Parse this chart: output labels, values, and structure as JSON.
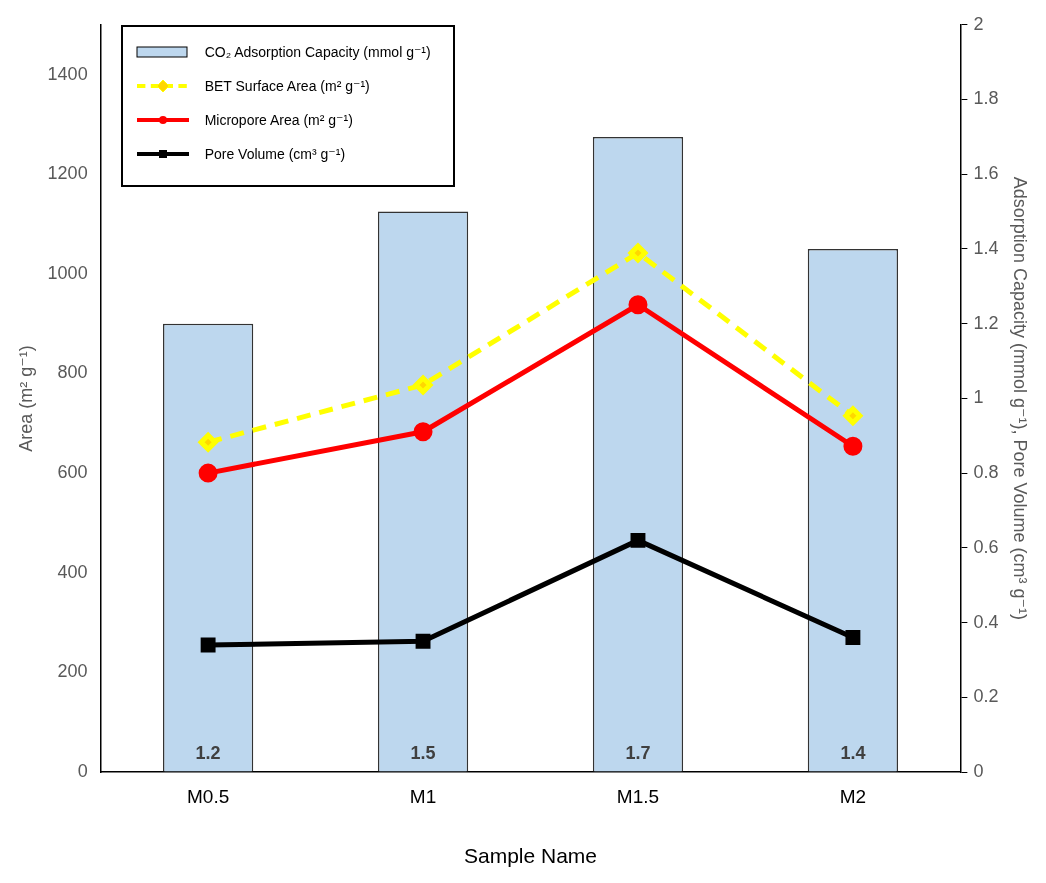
{
  "chart_data": {
    "type": "bar",
    "xlabel": "Sample Name",
    "ylabel": "Area (m² g⁻¹)",
    "y2label": "Adsorption Capacity (mmol g⁻¹), Pore Volume (cm³ g⁻¹)",
    "categories": [
      "M0.5",
      "M1",
      "M1.5",
      "M2"
    ],
    "series": [
      {
        "name": "CO₂ Adsorption Capacity (mmol g⁻¹)",
        "axis": "y2",
        "color": "#bdd7ee",
        "values": [
          1.2,
          1.5,
          1.7,
          1.4
        ],
        "value_labels": [
          "1.2",
          "1.5",
          "1.7",
          "1.4"
        ]
      },
      {
        "name": "BET Surface Area (m² g⁻¹)",
        "type": "line",
        "color": "#ffff00",
        "marker": "diamond",
        "line_style": "dashed",
        "values": [
          662,
          777,
          1042,
          715
        ]
      },
      {
        "name": "Micropore Area (m² g⁻¹)",
        "type": "line",
        "color": "#ff0000",
        "marker": "circle",
        "line_style": "solid",
        "values": [
          600,
          683,
          938,
          654
        ]
      },
      {
        "name": "Pore Volume (cm³ g⁻¹)",
        "type": "line",
        "axis": "y2",
        "color": "#000000",
        "marker": "square",
        "line_style": "solid",
        "values": [
          0.34,
          0.35,
          0.62,
          0.36
        ]
      }
    ],
    "ylim": [
      0,
      1500
    ],
    "yticks": [
      0,
      200,
      400,
      600,
      800,
      1000,
      1200,
      1400
    ],
    "y2lim": [
      0,
      2
    ],
    "y2ticks": [
      0,
      0.2,
      0.4,
      0.6,
      0.8,
      1,
      1.2,
      1.4,
      1.6,
      1.8,
      2
    ],
    "grid": false,
    "legend": "top left"
  }
}
